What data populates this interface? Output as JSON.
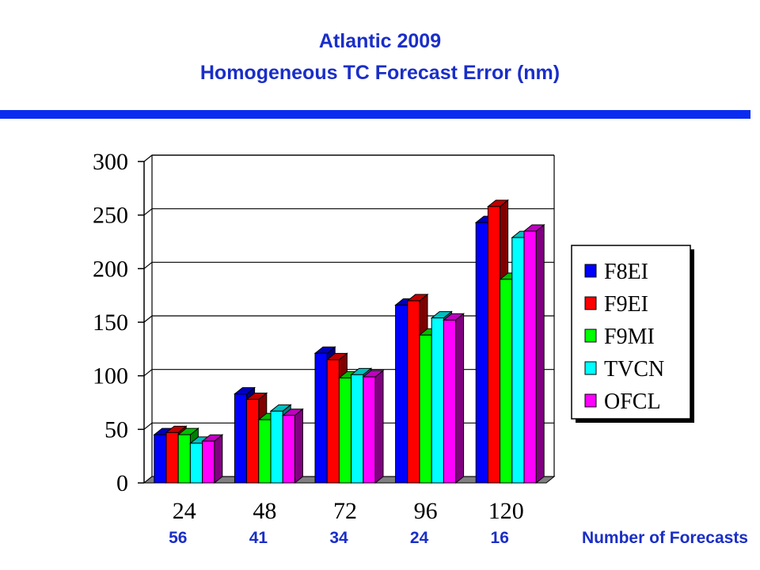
{
  "title": {
    "line1": "Atlantic 2009",
    "line2": "Homogeneous TC Forecast Error (nm)"
  },
  "chart_data": {
    "type": "bar",
    "title": "Atlantic 2009 Homogeneous TC Forecast Error (nm)",
    "xlabel": "",
    "ylabel": "",
    "categories": [
      "24",
      "48",
      "72",
      "96",
      "120"
    ],
    "ylim": [
      0,
      300
    ],
    "yticks": [
      "0",
      "50",
      "100",
      "150",
      "200",
      "250",
      "300"
    ],
    "grid": true,
    "legend_position": "right",
    "series": [
      {
        "name": "F8EI",
        "color": "#0000ff",
        "values": [
          45,
          83,
          121,
          166,
          243
        ]
      },
      {
        "name": "F9EI",
        "color": "#ff0000",
        "values": [
          47,
          78,
          115,
          170,
          258
        ]
      },
      {
        "name": "F9MI",
        "color": "#00ff00",
        "values": [
          45,
          59,
          98,
          138,
          190
        ]
      },
      {
        "name": "TVCN",
        "color": "#00ffff",
        "values": [
          37,
          67,
          101,
          154,
          229
        ]
      },
      {
        "name": "OFCL",
        "color": "#ff00ff",
        "values": [
          39,
          63,
          99,
          152,
          235
        ]
      }
    ],
    "counts": [
      "56",
      "41",
      "34",
      "24",
      "16"
    ],
    "counts_label": "Number of Forecasts"
  }
}
